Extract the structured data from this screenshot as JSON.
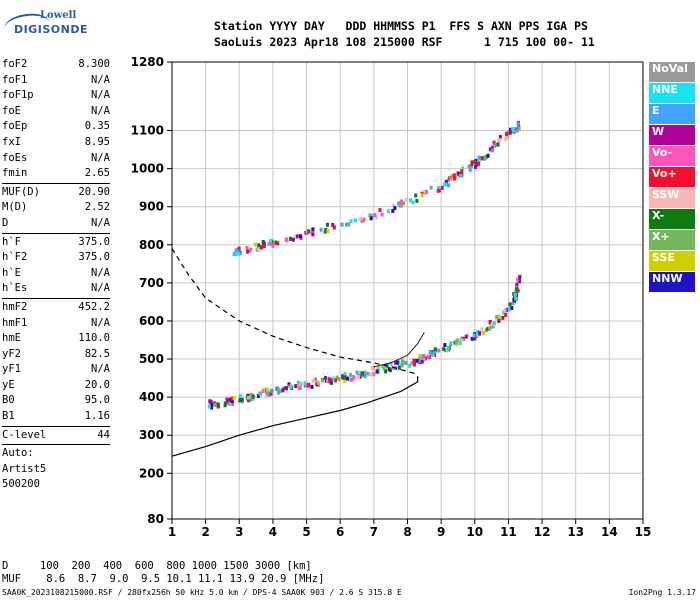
{
  "logo": {
    "line1": "Lowell",
    "line2": "DIGISONDE"
  },
  "header": {
    "line1": "Station YYYY DAY   DDD HHMMSS P1  FFS S AXN PPS IGA PS",
    "line2": "SaoLuis 2023 Apr18 108 215000 RSF      1 715 100 00- 11"
  },
  "params": [
    {
      "label": "foF2",
      "value": "8.300"
    },
    {
      "label": "foF1",
      "value": "N/A"
    },
    {
      "label": "foF1p",
      "value": "N/A"
    },
    {
      "label": "foE",
      "value": "N/A"
    },
    {
      "label": "foEp",
      "value": "0.35"
    },
    {
      "label": "fxI",
      "value": "8.95"
    },
    {
      "label": "foEs",
      "value": "N/A"
    },
    {
      "label": "fmin",
      "value": "2.65"
    },
    {
      "sep": true
    },
    {
      "label": "MUF(D)",
      "value": "20.90"
    },
    {
      "label": "M(D)",
      "value": "2.52"
    },
    {
      "label": "D",
      "value": "N/A"
    },
    {
      "sep": true
    },
    {
      "label": "h`F",
      "value": "375.0"
    },
    {
      "label": "h`F2",
      "value": "375.0"
    },
    {
      "label": "h`E",
      "value": "N/A"
    },
    {
      "label": "h`Es",
      "value": "N/A"
    },
    {
      "sep": true
    },
    {
      "label": "hmF2",
      "value": "452.2"
    },
    {
      "label": "hmF1",
      "value": "N/A"
    },
    {
      "label": "hmE",
      "value": "110.0"
    },
    {
      "label": "yF2",
      "value": "82.5"
    },
    {
      "label": "yF1",
      "value": "N/A"
    },
    {
      "label": "yE",
      "value": "20.0"
    },
    {
      "label": "B0",
      "value": "95.0"
    },
    {
      "label": "B1",
      "value": "1.16"
    },
    {
      "sep": true
    },
    {
      "label": "C-level",
      "value": "44"
    },
    {
      "sep": true
    },
    {
      "text": "Auto:"
    },
    {
      "text": "Artist5"
    },
    {
      "text": "500200"
    }
  ],
  "legend": [
    {
      "label": "NoVal",
      "color": "#9a9a9a"
    },
    {
      "label": "NNE",
      "color": "#19e3f0"
    },
    {
      "label": "E",
      "color": "#3fa3ff"
    },
    {
      "label": "W",
      "color": "#b0009a"
    },
    {
      "label": "Vo-",
      "color": "#ff55b8"
    },
    {
      "label": "Vo+",
      "color": "#f50f2f"
    },
    {
      "label": "SSW",
      "color": "#f7b7b7"
    },
    {
      "label": "X-",
      "color": "#0f7a0f"
    },
    {
      "label": "X+",
      "color": "#74b65e"
    },
    {
      "label": "SSE",
      "color": "#cfd000"
    },
    {
      "label": "NNW",
      "color": "#1d13c4"
    }
  ],
  "bottom": {
    "line1": "D     100  200  400  600  800 1000 1500 3000 [km]",
    "line2": "MUF    8.6  8.7  9.0  9.5 10.1 11.1 13.9 20.9 [MHz]"
  },
  "footer": {
    "left": "SAA0K_2023108215000.RSF / 280fx256h 50 kHz 5.0 km / DPS-4 SAA0K 903 / 2.6 S 315.8 E",
    "right": "Ion2Png 1.3.17"
  },
  "chart_data": {
    "type": "scatter",
    "x_ticks": [
      1,
      2,
      3,
      4,
      5,
      6,
      7,
      8,
      9,
      10,
      11,
      12,
      13,
      14,
      15
    ],
    "y_ticks": [
      80,
      200,
      300,
      400,
      500,
      600,
      700,
      800,
      900,
      1000,
      1100,
      1280
    ],
    "xlim": [
      1,
      15
    ],
    "ylim": [
      80,
      1280
    ],
    "grid": true,
    "traces": [
      {
        "name": "F-trace",
        "points": [
          [
            2.0,
            385
          ],
          [
            2.5,
            390
          ],
          [
            3.0,
            400
          ],
          [
            3.5,
            410
          ],
          [
            4.0,
            422
          ],
          [
            4.5,
            432
          ],
          [
            5.0,
            440
          ],
          [
            5.5,
            447
          ],
          [
            6.0,
            455
          ],
          [
            6.5,
            463
          ],
          [
            7.0,
            475
          ],
          [
            7.5,
            485
          ],
          [
            8.0,
            495
          ],
          [
            8.5,
            510
          ],
          [
            9.0,
            530
          ],
          [
            9.5,
            550
          ],
          [
            10.0,
            570
          ],
          [
            10.5,
            600
          ],
          [
            11.0,
            640
          ],
          [
            11.2,
            680
          ],
          [
            11.3,
            720
          ]
        ]
      },
      {
        "name": "F-trace-upper",
        "points": [
          [
            2.8,
            785
          ],
          [
            3.5,
            800
          ],
          [
            4.0,
            812
          ],
          [
            5.0,
            835
          ],
          [
            6.0,
            860
          ],
          [
            7.0,
            885
          ],
          [
            8.0,
            920
          ],
          [
            9.0,
            960
          ],
          [
            9.5,
            990
          ],
          [
            10.0,
            1020
          ],
          [
            10.5,
            1060
          ],
          [
            11.0,
            1100
          ],
          [
            11.3,
            1120
          ]
        ]
      }
    ],
    "profile_solid": [
      [
        1.0,
        245
      ],
      [
        2.0,
        270
      ],
      [
        3.0,
        300
      ],
      [
        4.0,
        325
      ],
      [
        5.0,
        345
      ],
      [
        6.0,
        365
      ],
      [
        6.8,
        385
      ],
      [
        7.3,
        400
      ],
      [
        7.8,
        415
      ],
      [
        8.3,
        440
      ],
      [
        8.3,
        455
      ]
    ],
    "profile_dashed": [
      [
        1.0,
        790
      ],
      [
        1.5,
        720
      ],
      [
        2.0,
        660
      ],
      [
        3.0,
        600
      ],
      [
        4.0,
        560
      ],
      [
        5.0,
        530
      ],
      [
        6.0,
        505
      ],
      [
        7.0,
        490
      ],
      [
        7.5,
        480
      ],
      [
        8.3,
        460
      ]
    ],
    "profile_thin": [
      [
        7.0,
        480
      ],
      [
        7.5,
        490
      ],
      [
        8.0,
        510
      ],
      [
        8.3,
        540
      ],
      [
        8.5,
        570
      ]
    ]
  }
}
